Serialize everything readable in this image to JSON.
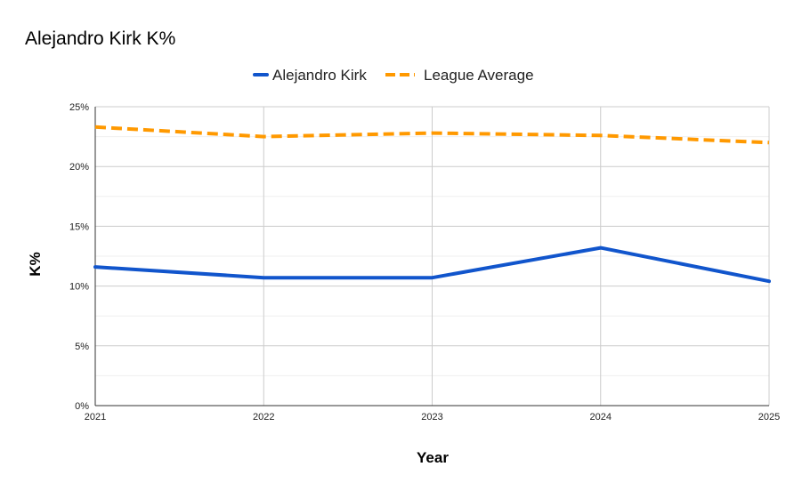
{
  "chart_data": {
    "type": "line",
    "title": "Alejandro Kirk K%",
    "xlabel": "Year",
    "ylabel": "K%",
    "categories": [
      "2021",
      "2022",
      "2023",
      "2024",
      "2025"
    ],
    "ylim": [
      0,
      25
    ],
    "y_ticks": [
      0,
      5,
      10,
      15,
      20,
      25
    ],
    "y_tick_labels": [
      "0%",
      "5%",
      "10%",
      "15%",
      "20%",
      "25%"
    ],
    "grid": true,
    "legend_position": "top-center",
    "series": [
      {
        "name": "Alejandro Kirk",
        "values": [
          11.6,
          10.7,
          10.7,
          13.2,
          10.4
        ],
        "color": "#1155cc",
        "style": "solid"
      },
      {
        "name": "League Average",
        "values": [
          23.3,
          22.5,
          22.8,
          22.6,
          22.0
        ],
        "color": "#ff9900",
        "style": "dashed"
      }
    ]
  }
}
